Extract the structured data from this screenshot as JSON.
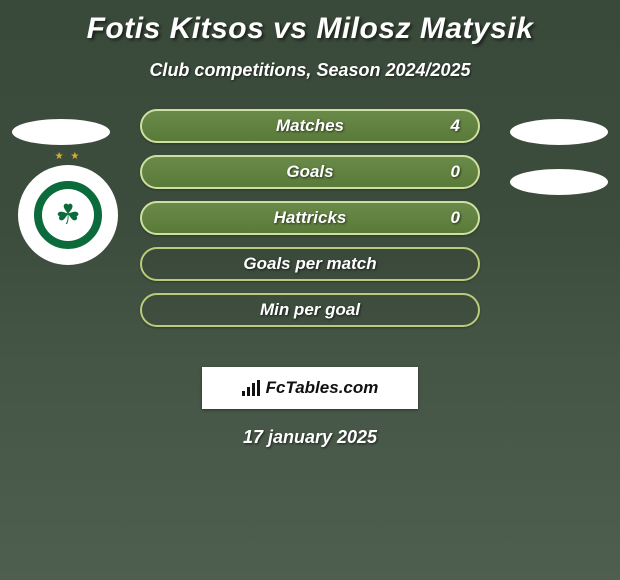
{
  "header": {
    "title": "Fotis Kitsos vs Milosz Matysik",
    "subtitle": "Club competitions, Season 2024/2025"
  },
  "stats": [
    {
      "label": "Matches",
      "value": "4",
      "filled": true
    },
    {
      "label": "Goals",
      "value": "0",
      "filled": true
    },
    {
      "label": "Hattricks",
      "value": "0",
      "filled": true
    },
    {
      "label": "Goals per match",
      "value": "",
      "filled": false
    },
    {
      "label": "Min per goal",
      "value": "",
      "filled": false
    }
  ],
  "branding": {
    "site_name": "FcTables.com"
  },
  "footer": {
    "date": "17 january 2025"
  },
  "styling": {
    "background_gradient": [
      "#3a4a3a",
      "#4f5f4f"
    ],
    "title_color": "#ffffff",
    "pill_filled_bg": [
      "#6a8a4a",
      "#5a7a3a"
    ],
    "pill_border": "#cde0a0",
    "pill_empty_border": "#b8cc7a",
    "font_style": "italic",
    "title_fontsize": 30,
    "subtitle_fontsize": 18,
    "stat_fontsize": 17,
    "branding_bg": "#ffffff",
    "branding_text_color": "#111111",
    "logo_green": "#0b6b3a",
    "logo_star_color": "#d4af37"
  }
}
